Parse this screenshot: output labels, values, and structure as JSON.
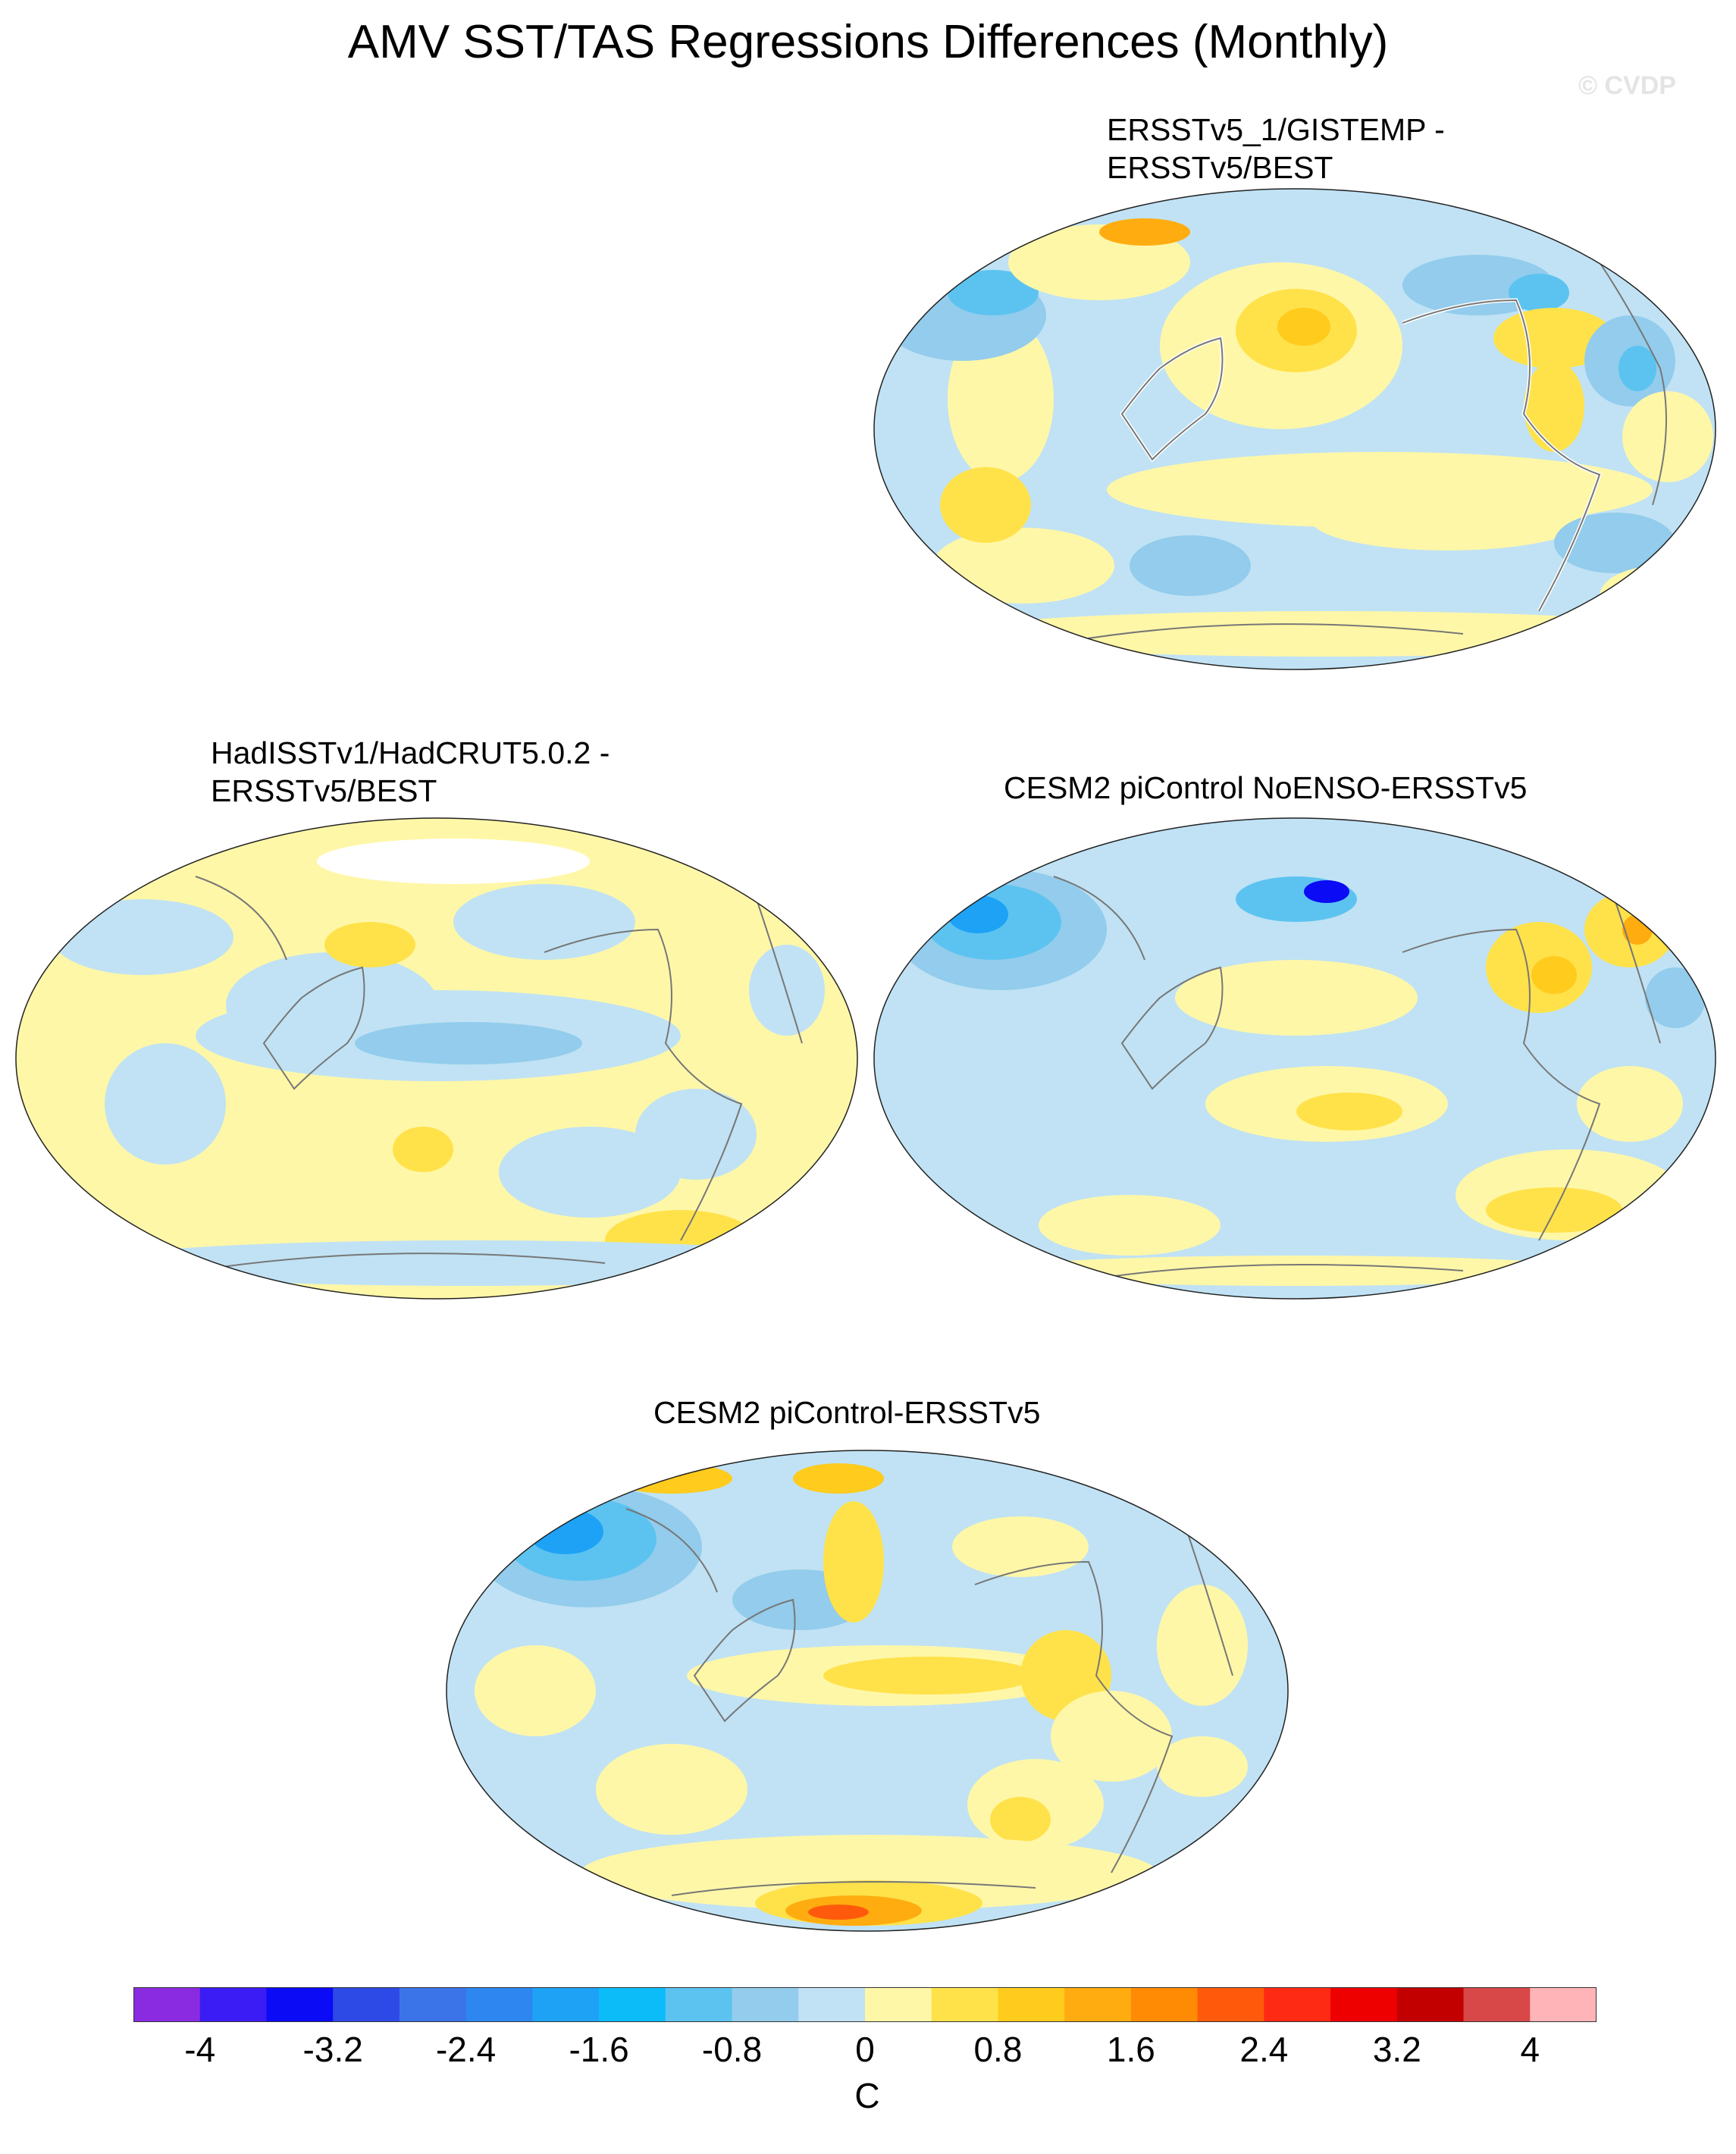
{
  "title": "AMV SST/TAS Regressions Differences (Monthly)",
  "watermark": "© CVDP",
  "panels": [
    {
      "id": "p1",
      "title": "ERSSTv5_1/GISTEMP -\nERSSTv5/BEST"
    },
    {
      "id": "p2",
      "title": "HadISSTv1/HadCRUT5.0.2 -\nERSSTv5/BEST"
    },
    {
      "id": "p3",
      "title": "CESM2 piControl NoENSO-ERSSTv5"
    },
    {
      "id": "p4",
      "title": "CESM2 piControl-ERSSTv5"
    }
  ],
  "colorbar": {
    "units": "C",
    "tick_labels": [
      "-4",
      "-3.2",
      "-2.4",
      "-1.6",
      "-0.8",
      "0",
      "0.8",
      "1.6",
      "2.4",
      "3.2",
      "4"
    ],
    "levels": [
      -4.4,
      -4.0,
      -3.6,
      -3.2,
      -2.8,
      -2.4,
      -2.0,
      -1.6,
      -1.2,
      -0.8,
      -0.4,
      0,
      0.4,
      0.8,
      1.2,
      1.6,
      2.0,
      2.4,
      2.8,
      3.2,
      3.6,
      4.0,
      4.4
    ],
    "colors": [
      "#8a2be2",
      "#3b1cf4",
      "#0b0bf5",
      "#2d4ae6",
      "#3b74e8",
      "#2e86f0",
      "#1ea2f5",
      "#0cbcf8",
      "#5cc3f0",
      "#93ccec",
      "#c0e2f4",
      "#fff7a8",
      "#ffe24a",
      "#ffcb1d",
      "#ffac10",
      "#ff8a04",
      "#ff5a0b",
      "#ff2a14",
      "#ee0000",
      "#c30000",
      "#d84848",
      "#ffb4b8"
    ]
  }
}
